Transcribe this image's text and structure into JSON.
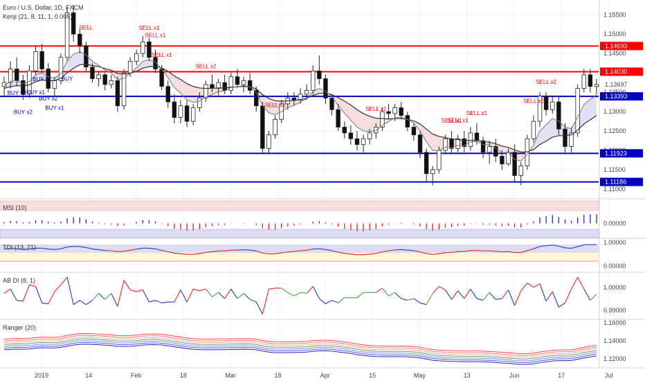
{
  "header": {
    "title": "Euro / U.S. Dollar, 1D, FXCM",
    "indicator": "Kenji (21, 8, 11, 1, 0.005)"
  },
  "colors": {
    "up": "#333333",
    "down": "#111111",
    "red": "#ff0000",
    "blue": "#0000c0",
    "green": "#449944",
    "label_red": "#ff0000",
    "label_blue": "#0000c0",
    "price_tag": "#0000c0"
  },
  "chart_data": [
    {
      "type": "candlestick",
      "name": "main",
      "title": "Euro / U.S. Dollar, 1D, FXCM",
      "ylim": [
        1.1075,
        1.1588
      ],
      "yticks": [
        "1.15500",
        "1.15000",
        "1.14500",
        "1.14000",
        "1.13500",
        "1.13000",
        "1.12500",
        "1.12000",
        "1.11500",
        "1.11000"
      ],
      "ytick_values": [
        1.155,
        1.15,
        1.145,
        1.14,
        1.135,
        1.13,
        1.125,
        1.12,
        1.115,
        1.11
      ],
      "xlabels": [
        "2019",
        "14",
        "Feb",
        "18",
        "Mar",
        "18",
        "Apr",
        "15",
        "May",
        "13",
        "Jun",
        "17",
        "Jul"
      ],
      "levels": [
        {
          "value": 1.14693,
          "label": "1.14693",
          "color": "#ff0000"
        },
        {
          "value": 1.1403,
          "label": "1.14030",
          "color": "#ff0000"
        },
        {
          "value": 1.13393,
          "label": "1.13393",
          "color": "#0000c0"
        },
        {
          "value": 1.11923,
          "label": "1.11923",
          "color": "#0000c0"
        },
        {
          "value": 1.11186,
          "label": "1.11186",
          "color": "#0000c0"
        }
      ],
      "last_price": {
        "value": 1.13697,
        "label": "1.13697"
      },
      "signals": [
        {
          "label": "BUY x2",
          "day": 6,
          "side": "buy"
        },
        {
          "label": "BUY x2",
          "day": 10,
          "side": "buy"
        },
        {
          "label": "BUY x1",
          "day": 18,
          "side": "buy"
        },
        {
          "label": "BUY x1",
          "day": 20,
          "side": "buy"
        },
        {
          "label": "BUY x1",
          "day": 28,
          "side": "buy"
        },
        {
          "label": "BUY",
          "day": 34,
          "side": "buy"
        },
        {
          "label": "BUY x2",
          "day": 24,
          "side": "buy"
        },
        {
          "label": "SELL",
          "day": 44,
          "side": "sell"
        },
        {
          "label": "SELL x1",
          "day": 81,
          "side": "sell"
        },
        {
          "label": "SELL x1",
          "day": 85,
          "side": "sell"
        },
        {
          "label": "SELL x1",
          "day": 89,
          "side": "sell"
        },
        {
          "label": "SELL x2",
          "day": 113,
          "side": "sell"
        },
        {
          "label": "SELL x2",
          "day": 150,
          "side": "sell"
        },
        {
          "label": "SELL x1",
          "day": 208,
          "side": "sell"
        },
        {
          "label": "SELL x1",
          "day": 249,
          "side": "sell"
        },
        {
          "label": "SELL x1",
          "day": 254,
          "side": "sell"
        },
        {
          "label": "SELL x1",
          "day": 262,
          "side": "sell"
        },
        {
          "label": "SELL x2",
          "day": 296,
          "side": "sell"
        },
        {
          "label": "SELL x2",
          "day": 302,
          "side": "sell"
        }
      ],
      "candles": [
        {
          "o": 1.1365,
          "h": 1.139,
          "l": 1.134,
          "c": 1.1375
        },
        {
          "o": 1.1375,
          "h": 1.143,
          "l": 1.136,
          "c": 1.141
        },
        {
          "o": 1.141,
          "h": 1.144,
          "l": 1.1365,
          "c": 1.138
        },
        {
          "o": 1.138,
          "h": 1.1395,
          "l": 1.133,
          "c": 1.1345
        },
        {
          "o": 1.1345,
          "h": 1.142,
          "l": 1.1335,
          "c": 1.1405
        },
        {
          "o": 1.1405,
          "h": 1.147,
          "l": 1.1395,
          "c": 1.1455
        },
        {
          "o": 1.1455,
          "h": 1.1475,
          "l": 1.14,
          "c": 1.141
        },
        {
          "o": 1.141,
          "h": 1.1425,
          "l": 1.135,
          "c": 1.136
        },
        {
          "o": 1.136,
          "h": 1.139,
          "l": 1.134,
          "c": 1.138
        },
        {
          "o": 1.138,
          "h": 1.145,
          "l": 1.137,
          "c": 1.144
        },
        {
          "o": 1.144,
          "h": 1.157,
          "l": 1.143,
          "c": 1.1555
        },
        {
          "o": 1.1555,
          "h": 1.1575,
          "l": 1.148,
          "c": 1.15
        },
        {
          "o": 1.15,
          "h": 1.1515,
          "l": 1.145,
          "c": 1.147
        },
        {
          "o": 1.147,
          "h": 1.148,
          "l": 1.1405,
          "c": 1.1415
        },
        {
          "o": 1.1415,
          "h": 1.1425,
          "l": 1.1375,
          "c": 1.1385
        },
        {
          "o": 1.1385,
          "h": 1.1405,
          "l": 1.1365,
          "c": 1.1395
        },
        {
          "o": 1.1395,
          "h": 1.14,
          "l": 1.1355,
          "c": 1.137
        },
        {
          "o": 1.137,
          "h": 1.1395,
          "l": 1.136,
          "c": 1.138
        },
        {
          "o": 1.138,
          "h": 1.139,
          "l": 1.13,
          "c": 1.1315
        },
        {
          "o": 1.1315,
          "h": 1.141,
          "l": 1.1305,
          "c": 1.14
        },
        {
          "o": 1.14,
          "h": 1.144,
          "l": 1.139,
          "c": 1.143
        },
        {
          "o": 1.143,
          "h": 1.146,
          "l": 1.142,
          "c": 1.145
        },
        {
          "o": 1.145,
          "h": 1.1495,
          "l": 1.144,
          "c": 1.148
        },
        {
          "o": 1.148,
          "h": 1.149,
          "l": 1.143,
          "c": 1.144
        },
        {
          "o": 1.144,
          "h": 1.146,
          "l": 1.14,
          "c": 1.141
        },
        {
          "o": 1.141,
          "h": 1.142,
          "l": 1.1355,
          "c": 1.1365
        },
        {
          "o": 1.1365,
          "h": 1.138,
          "l": 1.131,
          "c": 1.1325
        },
        {
          "o": 1.1325,
          "h": 1.1345,
          "l": 1.127,
          "c": 1.1285
        },
        {
          "o": 1.1285,
          "h": 1.133,
          "l": 1.127,
          "c": 1.1315
        },
        {
          "o": 1.1315,
          "h": 1.133,
          "l": 1.126,
          "c": 1.1275
        },
        {
          "o": 1.1275,
          "h": 1.132,
          "l": 1.1265,
          "c": 1.131
        },
        {
          "o": 1.131,
          "h": 1.135,
          "l": 1.13,
          "c": 1.1335
        },
        {
          "o": 1.1335,
          "h": 1.138,
          "l": 1.1325,
          "c": 1.137
        },
        {
          "o": 1.137,
          "h": 1.1395,
          "l": 1.135,
          "c": 1.136
        },
        {
          "o": 1.136,
          "h": 1.1385,
          "l": 1.134,
          "c": 1.1375
        },
        {
          "o": 1.1375,
          "h": 1.1395,
          "l": 1.1345,
          "c": 1.1355
        },
        {
          "o": 1.1355,
          "h": 1.14,
          "l": 1.1345,
          "c": 1.139
        },
        {
          "o": 1.139,
          "h": 1.141,
          "l": 1.136,
          "c": 1.137
        },
        {
          "o": 1.137,
          "h": 1.139,
          "l": 1.135,
          "c": 1.138
        },
        {
          "o": 1.138,
          "h": 1.14,
          "l": 1.1345,
          "c": 1.1355
        },
        {
          "o": 1.1355,
          "h": 1.1365,
          "l": 1.13,
          "c": 1.1315
        },
        {
          "o": 1.1315,
          "h": 1.1325,
          "l": 1.119,
          "c": 1.1205
        },
        {
          "o": 1.1205,
          "h": 1.125,
          "l": 1.119,
          "c": 1.124
        },
        {
          "o": 1.124,
          "h": 1.129,
          "l": 1.123,
          "c": 1.128
        },
        {
          "o": 1.128,
          "h": 1.133,
          "l": 1.127,
          "c": 1.132
        },
        {
          "o": 1.132,
          "h": 1.135,
          "l": 1.1305,
          "c": 1.1335
        },
        {
          "o": 1.1335,
          "h": 1.135,
          "l": 1.1315,
          "c": 1.133
        },
        {
          "o": 1.133,
          "h": 1.136,
          "l": 1.132,
          "c": 1.1345
        },
        {
          "o": 1.1345,
          "h": 1.137,
          "l": 1.133,
          "c": 1.1355
        },
        {
          "o": 1.1355,
          "h": 1.142,
          "l": 1.1345,
          "c": 1.1405
        },
        {
          "o": 1.1405,
          "h": 1.1445,
          "l": 1.137,
          "c": 1.1385
        },
        {
          "o": 1.1385,
          "h": 1.1395,
          "l": 1.132,
          "c": 1.1335
        },
        {
          "o": 1.1335,
          "h": 1.1345,
          "l": 1.129,
          "c": 1.1305
        },
        {
          "o": 1.1305,
          "h": 1.132,
          "l": 1.125,
          "c": 1.126
        },
        {
          "o": 1.126,
          "h": 1.1275,
          "l": 1.123,
          "c": 1.1245
        },
        {
          "o": 1.1245,
          "h": 1.1265,
          "l": 1.1215,
          "c": 1.123
        },
        {
          "o": 1.123,
          "h": 1.125,
          "l": 1.12,
          "c": 1.1215
        },
        {
          "o": 1.1215,
          "h": 1.124,
          "l": 1.1195,
          "c": 1.123
        },
        {
          "o": 1.123,
          "h": 1.1255,
          "l": 1.1215,
          "c": 1.1245
        },
        {
          "o": 1.1245,
          "h": 1.127,
          "l": 1.123,
          "c": 1.126
        },
        {
          "o": 1.126,
          "h": 1.131,
          "l": 1.125,
          "c": 1.13
        },
        {
          "o": 1.13,
          "h": 1.132,
          "l": 1.128,
          "c": 1.1295
        },
        {
          "o": 1.1295,
          "h": 1.132,
          "l": 1.1275,
          "c": 1.131
        },
        {
          "o": 1.131,
          "h": 1.1325,
          "l": 1.128,
          "c": 1.129
        },
        {
          "o": 1.129,
          "h": 1.13,
          "l": 1.125,
          "c": 1.126
        },
        {
          "o": 1.126,
          "h": 1.127,
          "l": 1.1225,
          "c": 1.124
        },
        {
          "o": 1.124,
          "h": 1.125,
          "l": 1.118,
          "c": 1.1195
        },
        {
          "o": 1.1195,
          "h": 1.1205,
          "l": 1.112,
          "c": 1.114
        },
        {
          "o": 1.114,
          "h": 1.116,
          "l": 1.111,
          "c": 1.115
        },
        {
          "o": 1.115,
          "h": 1.121,
          "l": 1.114,
          "c": 1.12
        },
        {
          "o": 1.12,
          "h": 1.124,
          "l": 1.119,
          "c": 1.123
        },
        {
          "o": 1.123,
          "h": 1.125,
          "l": 1.119,
          "c": 1.1205
        },
        {
          "o": 1.1205,
          "h": 1.124,
          "l": 1.1195,
          "c": 1.123
        },
        {
          "o": 1.123,
          "h": 1.125,
          "l": 1.1195,
          "c": 1.121
        },
        {
          "o": 1.121,
          "h": 1.126,
          "l": 1.12,
          "c": 1.1245
        },
        {
          "o": 1.1245,
          "h": 1.127,
          "l": 1.1215,
          "c": 1.1225
        },
        {
          "o": 1.1225,
          "h": 1.1235,
          "l": 1.118,
          "c": 1.1195
        },
        {
          "o": 1.1195,
          "h": 1.1225,
          "l": 1.1165,
          "c": 1.121
        },
        {
          "o": 1.121,
          "h": 1.123,
          "l": 1.117,
          "c": 1.1185
        },
        {
          "o": 1.1185,
          "h": 1.12,
          "l": 1.115,
          "c": 1.1165
        },
        {
          "o": 1.1165,
          "h": 1.1205,
          "l": 1.116,
          "c": 1.1195
        },
        {
          "o": 1.1195,
          "h": 1.1215,
          "l": 1.112,
          "c": 1.1135
        },
        {
          "o": 1.1135,
          "h": 1.117,
          "l": 1.111,
          "c": 1.116
        },
        {
          "o": 1.116,
          "h": 1.124,
          "l": 1.115,
          "c": 1.123
        },
        {
          "o": 1.123,
          "h": 1.129,
          "l": 1.122,
          "c": 1.1275
        },
        {
          "o": 1.1275,
          "h": 1.135,
          "l": 1.126,
          "c": 1.134
        },
        {
          "o": 1.134,
          "h": 1.135,
          "l": 1.129,
          "c": 1.1305
        },
        {
          "o": 1.1305,
          "h": 1.134,
          "l": 1.1295,
          "c": 1.1325
        },
        {
          "o": 1.1325,
          "h": 1.134,
          "l": 1.124,
          "c": 1.1255
        },
        {
          "o": 1.1255,
          "h": 1.127,
          "l": 1.1195,
          "c": 1.121
        },
        {
          "o": 1.121,
          "h": 1.126,
          "l": 1.1195,
          "c": 1.1245
        },
        {
          "o": 1.1245,
          "h": 1.137,
          "l": 1.1235,
          "c": 1.136
        },
        {
          "o": 1.136,
          "h": 1.141,
          "l": 1.135,
          "c": 1.1395
        },
        {
          "o": 1.1395,
          "h": 1.141,
          "l": 1.135,
          "c": 1.1365
        },
        {
          "o": 1.1365,
          "h": 1.1385,
          "l": 1.1345,
          "c": 1.137
        }
      ],
      "ma_fast": [
        1.1368,
        1.1378,
        1.138,
        1.1372,
        1.1378,
        1.1395,
        1.14,
        1.139,
        1.1386,
        1.1398,
        1.143,
        1.1448,
        1.1455,
        1.1446,
        1.143,
        1.142,
        1.1407,
        1.14,
        1.1382,
        1.1386,
        1.1398,
        1.1413,
        1.143,
        1.1434,
        1.1428,
        1.141,
        1.1388,
        1.1362,
        1.1348,
        1.133,
        1.1324,
        1.1327,
        1.1338,
        1.1344,
        1.1352,
        1.1353,
        1.1362,
        1.1364,
        1.1368,
        1.1364,
        1.135,
        1.1316,
        1.1297,
        1.1292,
        1.13,
        1.131,
        1.1316,
        1.1325,
        1.1333,
        1.1352,
        1.136,
        1.1353,
        1.1338,
        1.1316,
        1.1296,
        1.1278,
        1.126,
        1.125,
        1.1248,
        1.1251,
        1.1265,
        1.1274,
        1.1284,
        1.1286,
        1.128,
        1.127,
        1.125,
        1.1222,
        1.12,
        1.12,
        1.1208,
        1.1207,
        1.1213,
        1.1212,
        1.1222,
        1.1223,
        1.1215,
        1.1214,
        1.1205,
        1.1194,
        1.1194,
        1.1177,
        1.1172,
        1.119,
        1.1214,
        1.125,
        1.1266,
        1.1282,
        1.1276,
        1.126,
        1.1256,
        1.1286,
        1.1318,
        1.1332,
        1.1343
      ],
      "ma_slow": [
        1.136,
        1.1364,
        1.1367,
        1.1366,
        1.1369,
        1.1377,
        1.1382,
        1.138,
        1.138,
        1.1386,
        1.14,
        1.1412,
        1.1421,
        1.1422,
        1.1419,
        1.1416,
        1.1411,
        1.1407,
        1.1398,
        1.1397,
        1.1399,
        1.1404,
        1.1412,
        1.1416,
        1.1417,
        1.1413,
        1.1404,
        1.1392,
        1.1383,
        1.1372,
        1.1365,
        1.1361,
        1.136,
        1.136,
        1.1361,
        1.1361,
        1.1363,
        1.1364,
        1.1365,
        1.1364,
        1.1359,
        1.1344,
        1.1334,
        1.1328,
        1.1327,
        1.1328,
        1.1329,
        1.1331,
        1.1334,
        1.1342,
        1.1347,
        1.1347,
        1.1344,
        1.1336,
        1.1327,
        1.1317,
        1.1305,
        1.1295,
        1.1288,
        1.1283,
        1.1282,
        1.1281,
        1.1282,
        1.1282,
        1.128,
        1.1276,
        1.1268,
        1.1255,
        1.1242,
        1.1236,
        1.1233,
        1.1229,
        1.1228,
        1.1225,
        1.1226,
        1.1226,
        1.1223,
        1.1221,
        1.1217,
        1.1211,
        1.1208,
        1.1201,
        1.1196,
        1.1196,
        1.1202,
        1.1215,
        1.1224,
        1.1234,
        1.1238,
        1.1238,
        1.124,
        1.1252,
        1.1268,
        1.1279,
        1.129
      ],
      "band_upper": [
        1.1388,
        1.1398,
        1.14,
        1.1392,
        1.1398,
        1.1415,
        1.142,
        1.141,
        1.1406,
        1.1418,
        1.145,
        1.1468,
        1.1475,
        1.1466,
        1.145,
        1.144,
        1.1427,
        1.142,
        1.1402,
        1.1406,
        1.1418,
        1.1433,
        1.145,
        1.1454,
        1.1448,
        1.143,
        1.1408,
        1.1382,
        1.1368,
        1.135,
        1.1344,
        1.1347,
        1.1358,
        1.1364,
        1.1372,
        1.1373,
        1.1382,
        1.1384,
        1.1388,
        1.1384,
        1.137,
        1.1336,
        1.1317,
        1.1312,
        1.132,
        1.133,
        1.1336,
        1.1345,
        1.1353,
        1.1372,
        1.138,
        1.1373,
        1.1358,
        1.1336,
        1.1316,
        1.1298,
        1.128,
        1.127,
        1.1268,
        1.1271,
        1.1285,
        1.1294,
        1.1304,
        1.1306,
        1.13,
        1.129,
        1.127,
        1.1242,
        1.122,
        1.122,
        1.1228,
        1.1227,
        1.1233,
        1.1232,
        1.1242,
        1.1243,
        1.1235,
        1.1234,
        1.1225,
        1.1214,
        1.1214,
        1.1197,
        1.1192,
        1.121,
        1.1234,
        1.127,
        1.1286,
        1.1302,
        1.1296,
        1.128,
        1.1276,
        1.1306,
        1.1338,
        1.1352,
        1.1363
      ]
    },
    {
      "type": "histogram",
      "name": "MSI (10)",
      "ylim": [
        -1.0,
        1.0
      ],
      "yticks": [
        "0.00000"
      ],
      "ytick_values": [
        0.0
      ]
    },
    {
      "type": "line",
      "name": "TDI (13, 21)",
      "ylim": [
        -0.2,
        1.0
      ],
      "yticks": [
        "1.00000",
        "0.00000"
      ],
      "ytick_values": [
        1.0,
        0.0
      ]
    },
    {
      "type": "line",
      "name": "AB DI (8, 1)",
      "ylim": [
        0.9885,
        1.006
      ],
      "yticks": [
        "1.00000",
        "0.99000"
      ],
      "ytick_values": [
        1.0,
        0.99
      ]
    },
    {
      "type": "line",
      "name": "Ranger (20)",
      "ylim": [
        1.1105,
        1.1625
      ],
      "yticks": [
        "1.16000",
        "1.14000",
        "1.12000"
      ],
      "ytick_values": [
        1.16,
        1.14,
        1.12
      ]
    }
  ]
}
